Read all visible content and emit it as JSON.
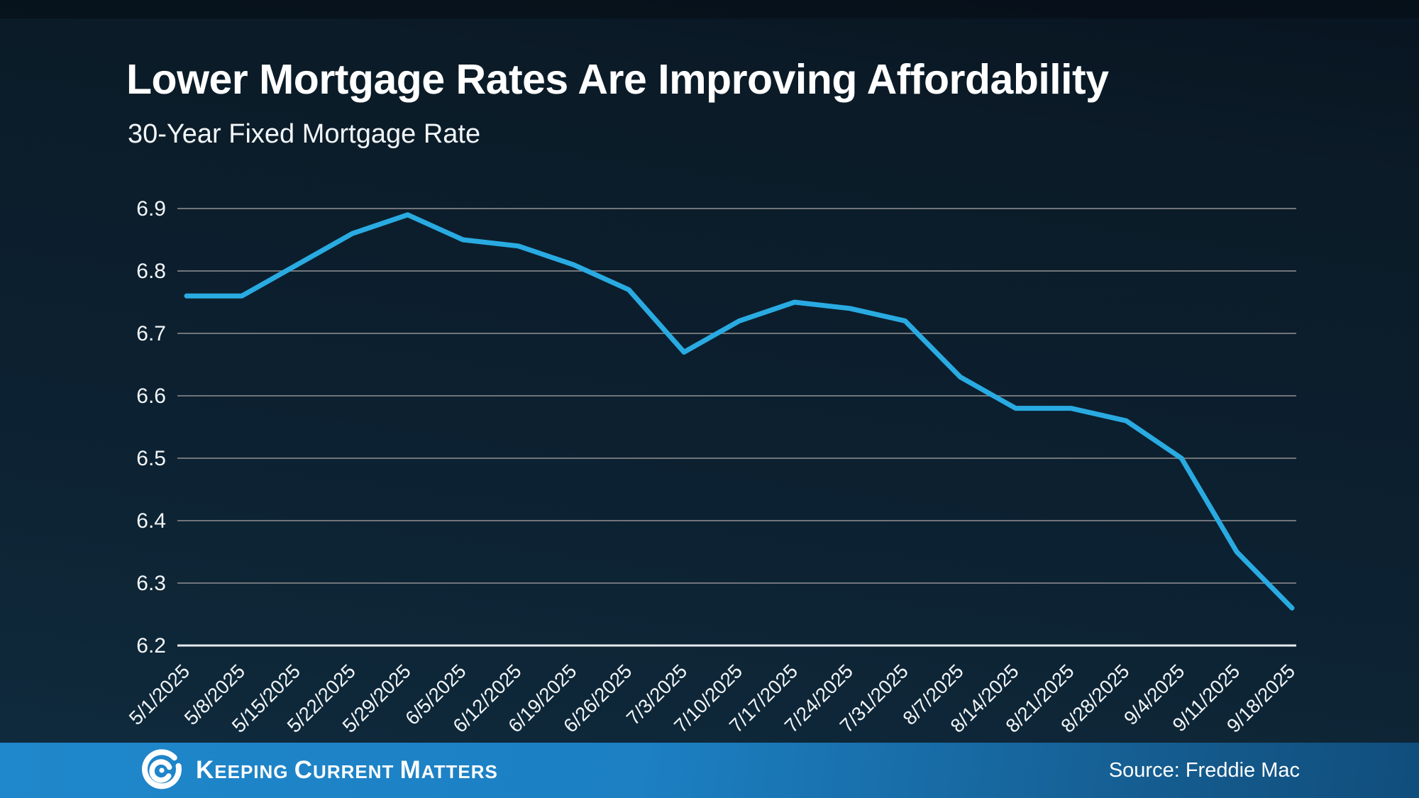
{
  "header": {
    "title": "Lower Mortgage Rates Are Improving Affordability",
    "subtitle": "30-Year Fixed Mortgage Rate"
  },
  "chart_data": {
    "type": "line",
    "title": "30-Year Fixed Mortgage Rate",
    "categories": [
      "5/1/2025",
      "5/8/2025",
      "5/15/2025",
      "5/22/2025",
      "5/29/2025",
      "6/5/2025",
      "6/12/2025",
      "6/19/2025",
      "6/26/2025",
      "7/3/2025",
      "7/10/2025",
      "7/17/2025",
      "7/24/2025",
      "7/31/2025",
      "8/7/2025",
      "8/14/2025",
      "8/21/2025",
      "8/28/2025",
      "9/4/2025",
      "9/11/2025",
      "9/18/2025"
    ],
    "values": [
      6.76,
      6.76,
      6.81,
      6.86,
      6.89,
      6.85,
      6.84,
      6.81,
      6.77,
      6.67,
      6.72,
      6.75,
      6.74,
      6.72,
      6.63,
      6.58,
      6.58,
      6.56,
      6.5,
      6.35,
      6.26
    ],
    "xlabel": "",
    "ylabel": "",
    "ylim": [
      6.2,
      6.9
    ],
    "yticks": [
      6.9,
      6.8,
      6.7,
      6.6,
      6.5,
      6.4,
      6.3,
      6.2
    ],
    "grid": true,
    "legend": "none",
    "line_color": "#29ABE2",
    "gridline_color": "#71757a",
    "axis_line_color": "#e7eaec",
    "tick_label_color": "#f3f6f8"
  },
  "footer": {
    "logo_word_1_initial": "K",
    "logo_word_1_rest": "EEPING",
    "logo_word_2_initial": "C",
    "logo_word_2_rest": "URRENT",
    "logo_word_3_initial": "M",
    "logo_word_3_rest": "ATTERS",
    "source": "Source: Freddie Mac"
  }
}
